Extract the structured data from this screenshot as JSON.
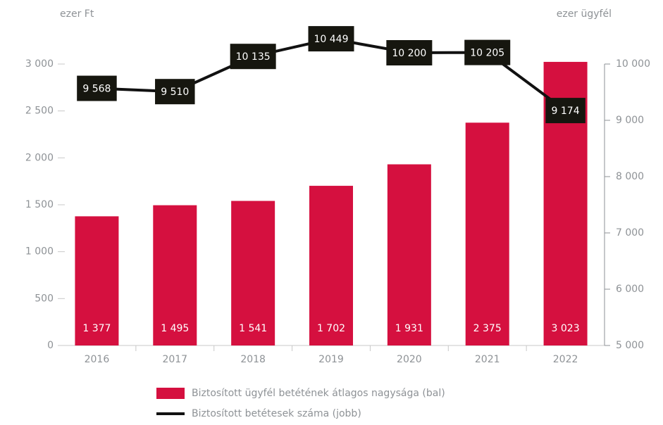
{
  "chart_data": {
    "type": "bar",
    "y_label": "ezer Ft",
    "y2_label": "ezer ügyfél",
    "categories": [
      "2016",
      "2017",
      "2018",
      "2019",
      "2020",
      "2021",
      "2022"
    ],
    "series": [
      {
        "name": "Biztosított ügyfél betétének átlagos nagysága (bal)",
        "type": "bar",
        "color": "#d5103f",
        "values": [
          1377,
          1495,
          1541,
          1702,
          1931,
          2375,
          3023
        ],
        "value_labels": [
          "1 377",
          "1 495",
          "1 541",
          "1 702",
          "1 931",
          "2 375",
          "3 023"
        ]
      },
      {
        "name": "Biztosított betétesek száma (jobb)",
        "type": "line",
        "axis": "y2",
        "color": "#111111",
        "values": [
          9568,
          9510,
          10135,
          10449,
          10200,
          10205,
          9174
        ],
        "value_labels": [
          "9 568",
          "9 510",
          "10 135",
          "10 449",
          "10 200",
          "10 205",
          "9 174"
        ]
      }
    ],
    "ylim": [
      0,
      3000
    ],
    "yticks": [
      0,
      500,
      {
        "value": 1000,
        "label": "1 000"
      },
      {
        "value": 1500,
        "label": "1 500"
      },
      {
        "value": 2000,
        "label": "2 000"
      },
      {
        "value": 2500,
        "label": "2 500"
      },
      {
        "value": 3000,
        "label": "3 000"
      }
    ],
    "y2lim": [
      5000,
      10000
    ],
    "y2ticks": [
      {
        "value": 5000,
        "label": "5 000"
      },
      {
        "value": 6000,
        "label": "6 000"
      },
      {
        "value": 7000,
        "label": "7 000"
      },
      {
        "value": 8000,
        "label": "8 000"
      },
      {
        "value": 9000,
        "label": "9 000"
      },
      {
        "value": 10000,
        "label": "10 000"
      }
    ],
    "grid": false,
    "legend": "bottom"
  }
}
